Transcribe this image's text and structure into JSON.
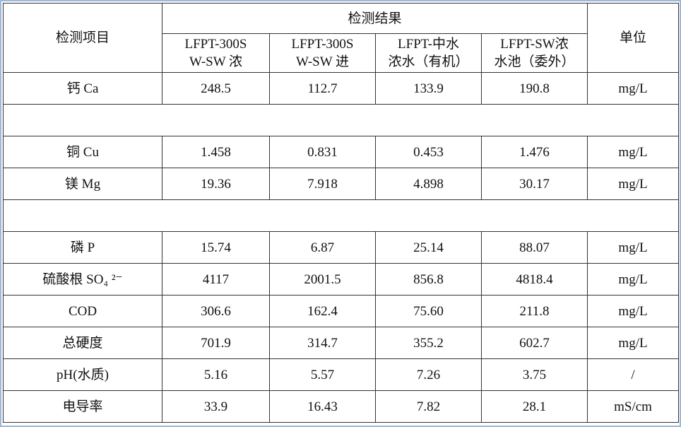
{
  "table": {
    "header": {
      "item": "检测项目",
      "results": "检测结果",
      "unit": "单位",
      "samples": [
        [
          "LFPT-300S",
          "W-SW 浓"
        ],
        [
          "LFPT-300S",
          "W-SW 进"
        ],
        [
          "LFPT-中水",
          "浓水（有机）"
        ],
        [
          "LFPT-SW浓",
          "水池（委外）"
        ]
      ]
    },
    "rows": [
      {
        "item": "钙 Ca",
        "values": [
          "248.5",
          "112.7",
          "133.9",
          "190.8"
        ],
        "unit": "mg/L"
      },
      {
        "item": "铜 Cu",
        "values": [
          "1.458",
          "0.831",
          "0.453",
          "1.476"
        ],
        "unit": "mg/L"
      },
      {
        "item": "镁 Mg",
        "values": [
          "19.36",
          "7.918",
          "4.898",
          "30.17"
        ],
        "unit": "mg/L"
      },
      {
        "item": "磷 P",
        "values": [
          "15.74",
          "6.87",
          "25.14",
          "88.07"
        ],
        "unit": "mg/L"
      },
      {
        "item": "硫酸根 SO₄ ²⁻",
        "values": [
          "4117",
          "2001.5",
          "856.8",
          "4818.4"
        ],
        "unit": "mg/L"
      },
      {
        "item": "COD",
        "values": [
          "306.6",
          "162.4",
          "75.60",
          "211.8"
        ],
        "unit": "mg/L"
      },
      {
        "item": "总硬度",
        "values": [
          "701.9",
          "314.7",
          "355.2",
          "602.7"
        ],
        "unit": "mg/L"
      },
      {
        "item": "pH(水质)",
        "values": [
          "5.16",
          "5.57",
          "7.26",
          "3.75"
        ],
        "unit": "/"
      },
      {
        "item": "电导率",
        "values": [
          "33.9",
          "16.43",
          "7.82",
          "28.1"
        ],
        "unit": "mS/cm"
      }
    ]
  }
}
